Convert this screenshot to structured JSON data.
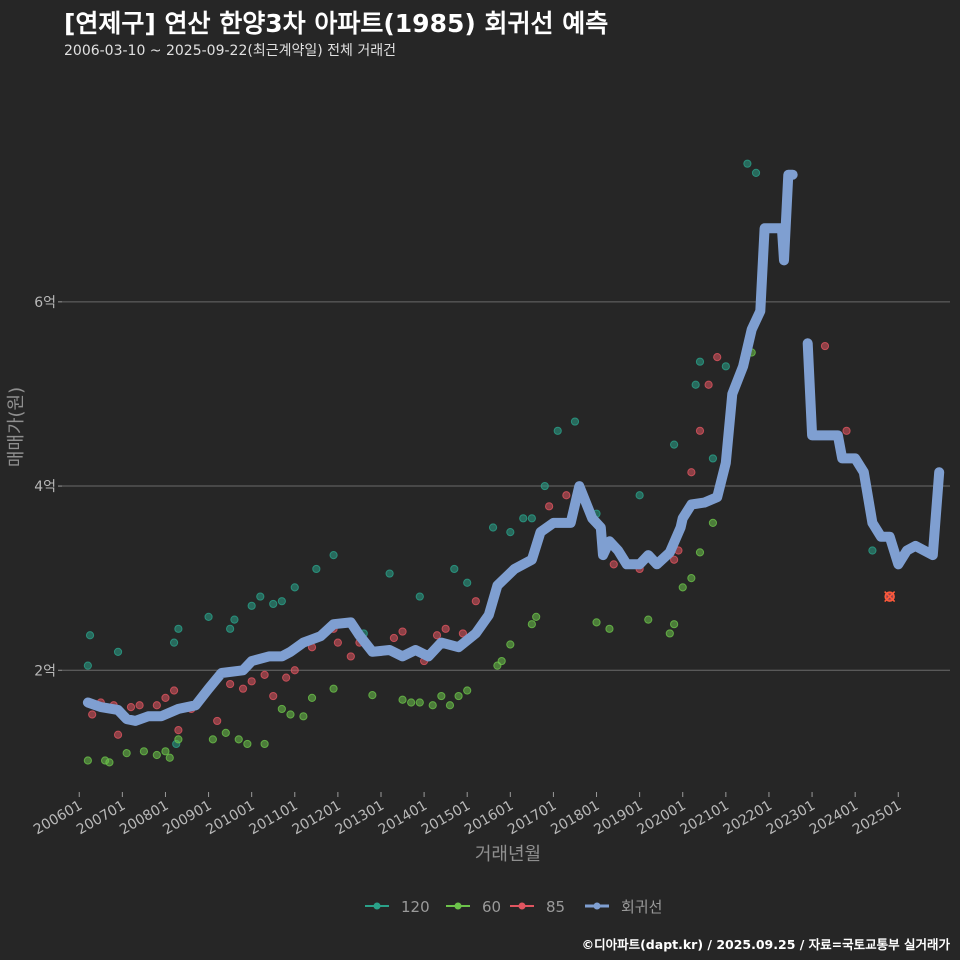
{
  "header": {
    "title": "[연제구] 연산 한양3차 아파트(1985) 회귀선 예측",
    "subtitle": "2006-03-10 ~ 2025-09-22(최근계약일) 전체 거래건"
  },
  "footer": {
    "credit": "©디아파트(dapt.kr) / 2025.09.25 / 자료=국토교통부 실거래가"
  },
  "colors": {
    "s120": "#2aa189",
    "s60": "#6cc24a",
    "s85": "#e05560",
    "regression": "#7f9fd1",
    "grid": "#6a6a6a",
    "background": "#262626"
  },
  "chart_data": {
    "type": "scatter",
    "xlabel": "거래년월",
    "ylabel": "매매가(원)",
    "xlim": [
      2005.6,
      2026.2
    ],
    "ylim": [
      0.7,
      8.3
    ],
    "y_ticks": [
      {
        "value": 2,
        "label": "2억"
      },
      {
        "value": 4,
        "label": "4억"
      },
      {
        "value": 6,
        "label": "6억"
      }
    ],
    "x_ticks": [
      {
        "value": 2006,
        "label": "200601"
      },
      {
        "value": 2007,
        "label": "200701"
      },
      {
        "value": 2008,
        "label": "200801"
      },
      {
        "value": 2009,
        "label": "200901"
      },
      {
        "value": 2010,
        "label": "201001"
      },
      {
        "value": 2011,
        "label": "201101"
      },
      {
        "value": 2012,
        "label": "201201"
      },
      {
        "value": 2013,
        "label": "201301"
      },
      {
        "value": 2014,
        "label": "201401"
      },
      {
        "value": 2015,
        "label": "201501"
      },
      {
        "value": 2016,
        "label": "201601"
      },
      {
        "value": 2017,
        "label": "201701"
      },
      {
        "value": 2018,
        "label": "201801"
      },
      {
        "value": 2019,
        "label": "201901"
      },
      {
        "value": 2020,
        "label": "202001"
      },
      {
        "value": 2021,
        "label": "202101"
      },
      {
        "value": 2022,
        "label": "202201"
      },
      {
        "value": 2023,
        "label": "202301"
      },
      {
        "value": 2024,
        "label": "202401"
      },
      {
        "value": 2025,
        "label": "202501"
      }
    ],
    "legend": [
      {
        "name": "120",
        "color_key": "s120"
      },
      {
        "name": "60",
        "color_key": "s60"
      },
      {
        "name": "85",
        "color_key": "s85"
      },
      {
        "name": "회귀선",
        "color_key": "regression"
      }
    ],
    "series": [
      {
        "name": "120",
        "points": [
          [
            2006.2,
            2.05
          ],
          [
            2006.25,
            2.38
          ],
          [
            2006.9,
            2.2
          ],
          [
            2008.2,
            2.3
          ],
          [
            2008.3,
            2.45
          ],
          [
            2008.25,
            1.2
          ],
          [
            2009.0,
            2.58
          ],
          [
            2009.5,
            2.45
          ],
          [
            2009.6,
            2.55
          ],
          [
            2010.0,
            2.7
          ],
          [
            2010.2,
            2.8
          ],
          [
            2010.5,
            2.72
          ],
          [
            2010.7,
            2.75
          ],
          [
            2011.0,
            2.9
          ],
          [
            2011.5,
            3.1
          ],
          [
            2011.9,
            3.25
          ],
          [
            2012.6,
            2.4
          ],
          [
            2013.2,
            3.05
          ],
          [
            2013.9,
            2.8
          ],
          [
            2014.7,
            3.1
          ],
          [
            2015.0,
            2.95
          ],
          [
            2015.6,
            3.55
          ],
          [
            2016.0,
            3.5
          ],
          [
            2016.3,
            3.65
          ],
          [
            2016.5,
            3.65
          ],
          [
            2016.8,
            4.0
          ],
          [
            2017.1,
            4.6
          ],
          [
            2017.5,
            4.7
          ],
          [
            2018.0,
            3.7
          ],
          [
            2019.0,
            3.9
          ],
          [
            2019.8,
            4.45
          ],
          [
            2020.3,
            5.1
          ],
          [
            2020.4,
            5.35
          ],
          [
            2020.7,
            4.3
          ],
          [
            2021.0,
            5.3
          ],
          [
            2021.5,
            7.5
          ],
          [
            2021.7,
            7.4
          ],
          [
            2024.4,
            3.3
          ]
        ]
      },
      {
        "name": "60",
        "points": [
          [
            2006.2,
            1.02
          ],
          [
            2006.6,
            1.02
          ],
          [
            2006.7,
            1.0
          ],
          [
            2007.1,
            1.1
          ],
          [
            2007.5,
            1.12
          ],
          [
            2007.8,
            1.08
          ],
          [
            2008.0,
            1.12
          ],
          [
            2008.1,
            1.05
          ],
          [
            2008.3,
            1.25
          ],
          [
            2009.1,
            1.25
          ],
          [
            2009.4,
            1.32
          ],
          [
            2009.7,
            1.25
          ],
          [
            2009.9,
            1.2
          ],
          [
            2010.3,
            1.2
          ],
          [
            2010.7,
            1.58
          ],
          [
            2010.9,
            1.52
          ],
          [
            2011.2,
            1.5
          ],
          [
            2011.4,
            1.7
          ],
          [
            2011.9,
            1.8
          ],
          [
            2012.8,
            1.73
          ],
          [
            2013.5,
            1.68
          ],
          [
            2013.7,
            1.65
          ],
          [
            2013.9,
            1.65
          ],
          [
            2014.2,
            1.62
          ],
          [
            2014.4,
            1.72
          ],
          [
            2014.6,
            1.62
          ],
          [
            2014.8,
            1.72
          ],
          [
            2015.0,
            1.78
          ],
          [
            2015.7,
            2.05
          ],
          [
            2015.8,
            2.1
          ],
          [
            2016.0,
            2.28
          ],
          [
            2016.5,
            2.5
          ],
          [
            2016.6,
            2.58
          ],
          [
            2018.0,
            2.52
          ],
          [
            2018.3,
            2.45
          ],
          [
            2019.2,
            2.55
          ],
          [
            2019.7,
            2.4
          ],
          [
            2019.8,
            2.5
          ],
          [
            2020.0,
            2.9
          ],
          [
            2020.2,
            3.0
          ],
          [
            2020.4,
            3.28
          ],
          [
            2020.7,
            3.6
          ],
          [
            2021.6,
            5.45
          ]
        ]
      },
      {
        "name": "85",
        "points": [
          [
            2006.3,
            1.52
          ],
          [
            2006.5,
            1.65
          ],
          [
            2006.8,
            1.62
          ],
          [
            2006.9,
            1.3
          ],
          [
            2007.2,
            1.6
          ],
          [
            2007.4,
            1.62
          ],
          [
            2007.8,
            1.62
          ],
          [
            2008.0,
            1.7
          ],
          [
            2008.2,
            1.78
          ],
          [
            2008.3,
            1.35
          ],
          [
            2008.6,
            1.58
          ],
          [
            2009.2,
            1.45
          ],
          [
            2009.5,
            1.85
          ],
          [
            2009.8,
            1.8
          ],
          [
            2010.0,
            1.88
          ],
          [
            2010.3,
            1.95
          ],
          [
            2010.5,
            1.72
          ],
          [
            2010.8,
            1.92
          ],
          [
            2011.0,
            2.0
          ],
          [
            2011.4,
            2.25
          ],
          [
            2011.9,
            2.45
          ],
          [
            2012.0,
            2.3
          ],
          [
            2012.3,
            2.15
          ],
          [
            2012.5,
            2.3
          ],
          [
            2013.0,
            2.2
          ],
          [
            2013.3,
            2.35
          ],
          [
            2013.5,
            2.42
          ],
          [
            2014.0,
            2.1
          ],
          [
            2014.3,
            2.38
          ],
          [
            2014.5,
            2.45
          ],
          [
            2014.9,
            2.4
          ],
          [
            2015.2,
            2.75
          ],
          [
            2015.4,
            2.55
          ],
          [
            2016.5,
            3.2
          ],
          [
            2016.9,
            3.78
          ],
          [
            2017.3,
            3.9
          ],
          [
            2018.4,
            3.15
          ],
          [
            2019.0,
            3.1
          ],
          [
            2019.8,
            3.2
          ],
          [
            2019.9,
            3.3
          ],
          [
            2020.2,
            4.15
          ],
          [
            2020.4,
            4.6
          ],
          [
            2020.6,
            5.1
          ],
          [
            2020.8,
            5.4
          ],
          [
            2023.3,
            5.52
          ],
          [
            2023.8,
            4.6
          ],
          [
            2024.8,
            2.8
          ]
        ]
      },
      {
        "name": "회귀선",
        "points": [
          [
            2006.2,
            1.65
          ],
          [
            2006.5,
            1.6
          ],
          [
            2006.9,
            1.57
          ],
          [
            2007.1,
            1.47
          ],
          [
            2007.3,
            1.45
          ],
          [
            2007.6,
            1.5
          ],
          [
            2007.9,
            1.5
          ],
          [
            2008.3,
            1.58
          ],
          [
            2008.7,
            1.62
          ],
          [
            2009.0,
            1.8
          ],
          [
            2009.3,
            1.97
          ],
          [
            2009.8,
            2.0
          ],
          [
            2010.0,
            2.1
          ],
          [
            2010.4,
            2.15
          ],
          [
            2010.7,
            2.15
          ],
          [
            2010.9,
            2.2
          ],
          [
            2011.2,
            2.3
          ],
          [
            2011.6,
            2.37
          ],
          [
            2011.9,
            2.5
          ],
          [
            2012.3,
            2.52
          ],
          [
            2012.5,
            2.38
          ],
          [
            2012.8,
            2.2
          ],
          [
            2013.2,
            2.22
          ],
          [
            2013.5,
            2.15
          ],
          [
            2013.8,
            2.22
          ],
          [
            2014.1,
            2.15
          ],
          [
            2014.4,
            2.3
          ],
          [
            2014.8,
            2.25
          ],
          [
            2015.2,
            2.4
          ],
          [
            2015.5,
            2.6
          ],
          [
            2015.7,
            2.92
          ],
          [
            2016.1,
            3.1
          ],
          [
            2016.5,
            3.2
          ],
          [
            2016.7,
            3.5
          ],
          [
            2017.0,
            3.6
          ],
          [
            2017.4,
            3.6
          ],
          [
            2017.6,
            4.0
          ],
          [
            2017.9,
            3.65
          ],
          [
            2018.1,
            3.55
          ],
          [
            2018.15,
            3.25
          ],
          [
            2018.3,
            3.4
          ],
          [
            2018.5,
            3.3
          ],
          [
            2018.7,
            3.15
          ],
          [
            2019.0,
            3.15
          ],
          [
            2019.2,
            3.25
          ],
          [
            2019.4,
            3.15
          ],
          [
            2019.7,
            3.28
          ],
          [
            2019.95,
            3.55
          ],
          [
            2020.0,
            3.65
          ],
          [
            2020.2,
            3.8
          ],
          [
            2020.5,
            3.82
          ],
          [
            2020.8,
            3.88
          ],
          [
            2021.0,
            4.25
          ],
          [
            2021.15,
            5.0
          ],
          [
            2021.4,
            5.3
          ],
          [
            2021.6,
            5.7
          ],
          [
            2021.8,
            5.9
          ],
          [
            2021.9,
            6.8
          ],
          [
            2022.3,
            6.8
          ],
          [
            2022.35,
            6.45
          ],
          [
            2022.45,
            7.38
          ],
          [
            2022.55,
            7.38
          ],
          [
            2022.9,
            5.55
          ],
          [
            2023.0,
            4.55
          ],
          [
            2023.4,
            4.55
          ],
          [
            2023.6,
            4.55
          ],
          [
            2023.7,
            4.3
          ],
          [
            2024.0,
            4.3
          ],
          [
            2024.2,
            4.15
          ],
          [
            2024.4,
            3.6
          ],
          [
            2024.6,
            3.45
          ],
          [
            2024.8,
            3.45
          ],
          [
            2025.0,
            3.15
          ],
          [
            2025.2,
            3.3
          ],
          [
            2025.4,
            3.35
          ],
          [
            2025.8,
            3.25
          ],
          [
            2025.95,
            4.15
          ]
        ]
      }
    ]
  }
}
